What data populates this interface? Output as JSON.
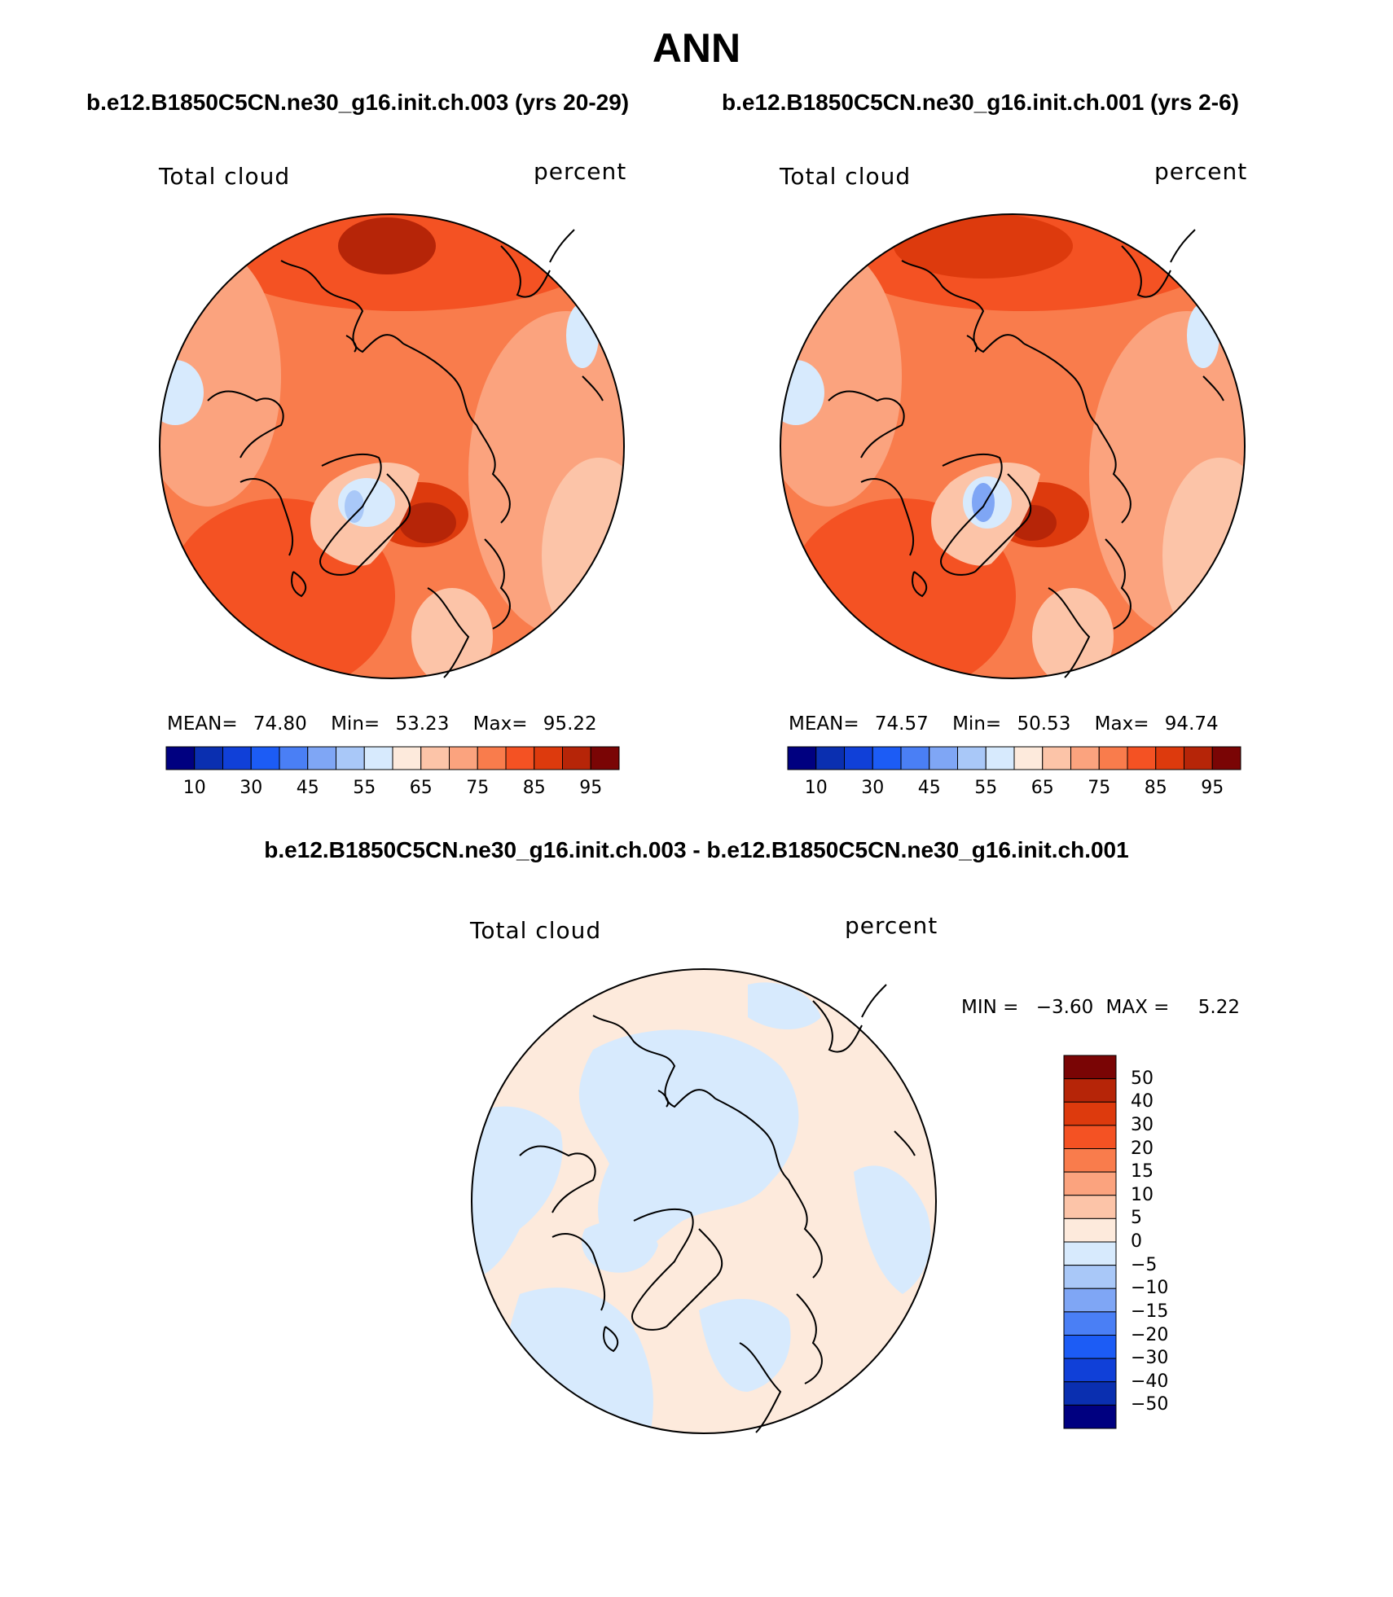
{
  "figure": {
    "title": "ANN",
    "diff_title": "b.e12.B1850C5CN.ne30_g16.init.ch.003 - b.e12.B1850C5CN.ne30_g16.init.ch.001"
  },
  "panels": [
    {
      "case_title": "b.e12.B1850C5CN.ne30_g16.init.ch.003 (yrs 20-29)",
      "variable": "Total cloud",
      "units": "percent",
      "stats": {
        "mean_label": "MEAN=",
        "mean": "74.80",
        "min_label": "Min=",
        "min": "53.23",
        "max_label": "Max=",
        "max": "95.22"
      }
    },
    {
      "case_title": "b.e12.B1850C5CN.ne30_g16.init.ch.001 (yrs 2-6)",
      "variable": "Total cloud",
      "units": "percent",
      "stats": {
        "mean_label": "MEAN=",
        "mean": "74.57",
        "min_label": "Min=",
        "min": "50.53",
        "max_label": "Max=",
        "max": "94.74"
      }
    }
  ],
  "diff_panel": {
    "variable": "Total cloud",
    "units": "percent",
    "min_label": "MIN =",
    "min": "−3.60",
    "max_label": "MAX =",
    "max": "5.22"
  },
  "colorbar_abs": {
    "colors": [
      "#000080",
      "#0a2fb0",
      "#1040d8",
      "#1c5cf5",
      "#4a7ff5",
      "#7fa6f5",
      "#a9c8f8",
      "#d7eafd",
      "#fdeadc",
      "#fcc4a8",
      "#fba37e",
      "#f97c4c",
      "#f45223",
      "#dd3a0d",
      "#b62508",
      "#7a0505"
    ],
    "tick_labels": [
      "10",
      "30",
      "45",
      "55",
      "65",
      "75",
      "85",
      "95"
    ]
  },
  "colorbar_diff": {
    "colors": [
      "#7a0505",
      "#b62508",
      "#dd3a0d",
      "#f45223",
      "#f97c4c",
      "#fba37e",
      "#fcc4a8",
      "#fdeadc",
      "#d7eafd",
      "#a9c8f8",
      "#7fa6f5",
      "#4a7ff5",
      "#1c5cf5",
      "#1040d8",
      "#0a2fb0",
      "#000080"
    ],
    "tick_labels": [
      "50",
      "40",
      "30",
      "20",
      "15",
      "10",
      "5",
      "0",
      "−5",
      "−10",
      "−15",
      "−20",
      "−30",
      "−40",
      "−50"
    ]
  },
  "map_colors": {
    "outline": "#000000",
    "coast": "#000000",
    "high1": "#dd3a0d",
    "high2": "#b62508",
    "mid1": "#f45223",
    "mid2": "#f97c4c",
    "low1": "#fba37e",
    "low2": "#fcc4a8",
    "pale": "#fdeadc",
    "blue": "#d7eafd",
    "blue2": "#a9c8f8"
  }
}
